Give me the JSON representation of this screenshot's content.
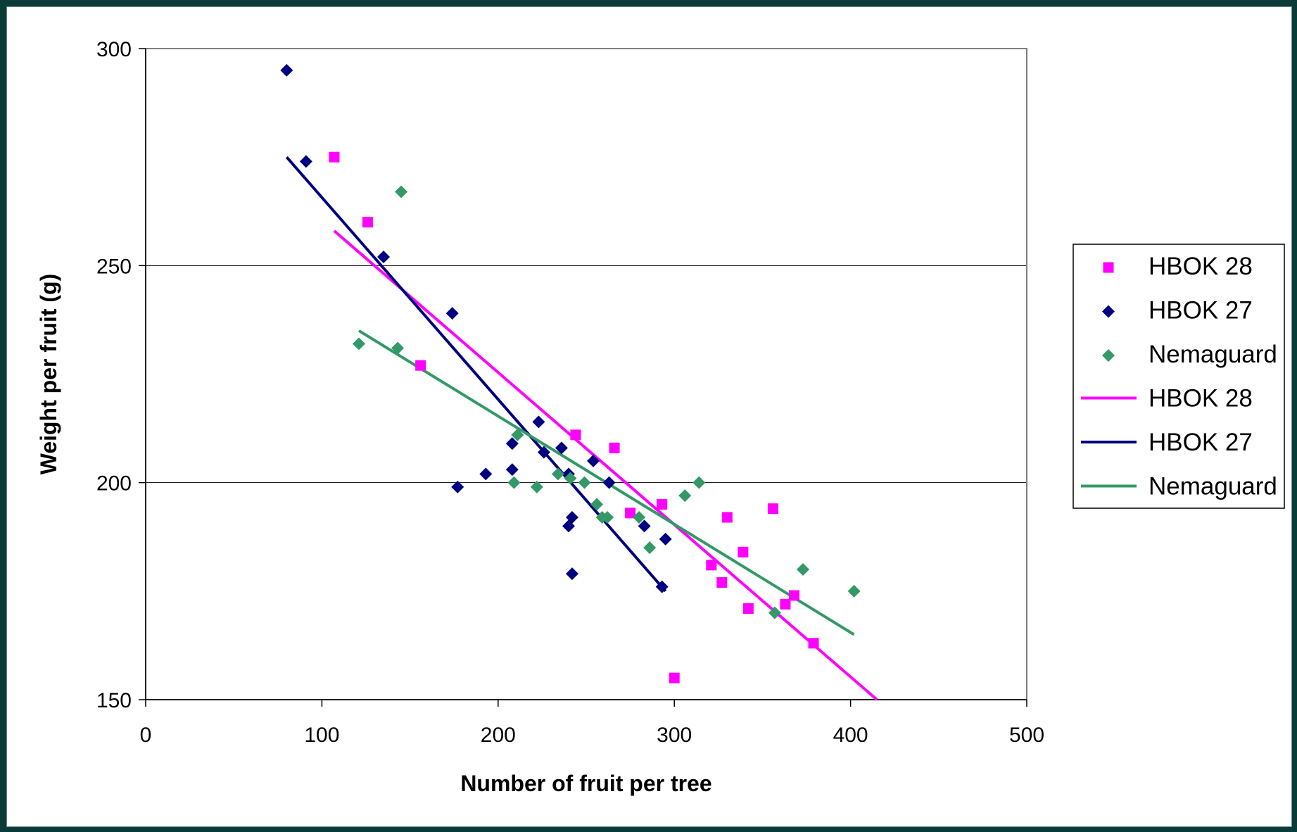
{
  "chart_data": {
    "type": "scatter",
    "title": "",
    "xlabel": "Number of fruit per tree",
    "ylabel": "Weight per fruit (g)",
    "xlim": [
      0,
      500
    ],
    "ylim": [
      150,
      300
    ],
    "xticks": [
      "0",
      "100",
      "200",
      "300",
      "400",
      "500"
    ],
    "yticks": [
      "150",
      "200",
      "250",
      "300"
    ],
    "grid": "horizontal major gridlines",
    "legend_position": "right",
    "series": [
      {
        "name": "HBOK 28",
        "marker": "square",
        "color": "#ff00ff",
        "points": [
          [
            107,
            275
          ],
          [
            126,
            260
          ],
          [
            156,
            227
          ],
          [
            244,
            211
          ],
          [
            266,
            208
          ],
          [
            275,
            193
          ],
          [
            293,
            195
          ],
          [
            300,
            155
          ],
          [
            321,
            181
          ],
          [
            327,
            177
          ],
          [
            330,
            192
          ],
          [
            339,
            184
          ],
          [
            342,
            171
          ],
          [
            356,
            194
          ],
          [
            363,
            172
          ],
          [
            368,
            174
          ],
          [
            379,
            163
          ]
        ]
      },
      {
        "name": "HBOK 27",
        "marker": "diamond",
        "color": "#000080",
        "points": [
          [
            80,
            295
          ],
          [
            91,
            274
          ],
          [
            135,
            252
          ],
          [
            174,
            239
          ],
          [
            177,
            199
          ],
          [
            193,
            202
          ],
          [
            208,
            209
          ],
          [
            208,
            203
          ],
          [
            223,
            214
          ],
          [
            226,
            207
          ],
          [
            236,
            208
          ],
          [
            240,
            202
          ],
          [
            240,
            190
          ],
          [
            242,
            192
          ],
          [
            242,
            179
          ],
          [
            254,
            205
          ],
          [
            263,
            200
          ],
          [
            283,
            190
          ],
          [
            293,
            176
          ],
          [
            295,
            187
          ]
        ]
      },
      {
        "name": "Nemaguard",
        "marker": "diamond",
        "color": "#339966",
        "points": [
          [
            121,
            232
          ],
          [
            143,
            231
          ],
          [
            145,
            267
          ],
          [
            209,
            200
          ],
          [
            211,
            211
          ],
          [
            222,
            199
          ],
          [
            234,
            202
          ],
          [
            241,
            201
          ],
          [
            249,
            200
          ],
          [
            256,
            195
          ],
          [
            259,
            192
          ],
          [
            262,
            192
          ],
          [
            280,
            192
          ],
          [
            286,
            185
          ],
          [
            306,
            197
          ],
          [
            314,
            200
          ],
          [
            357,
            170
          ],
          [
            373,
            180
          ],
          [
            402,
            175
          ]
        ]
      }
    ],
    "trendlines": [
      {
        "name": "HBOK 28",
        "color": "#ff00ff",
        "from": [
          107,
          258
        ],
        "to": [
          415,
          150
        ]
      },
      {
        "name": "HBOK 27",
        "color": "#000080",
        "from": [
          80,
          275
        ],
        "to": [
          295,
          175
        ]
      },
      {
        "name": "Nemaguard",
        "color": "#339966",
        "from": [
          121,
          235
        ],
        "to": [
          402,
          165
        ]
      }
    ]
  }
}
